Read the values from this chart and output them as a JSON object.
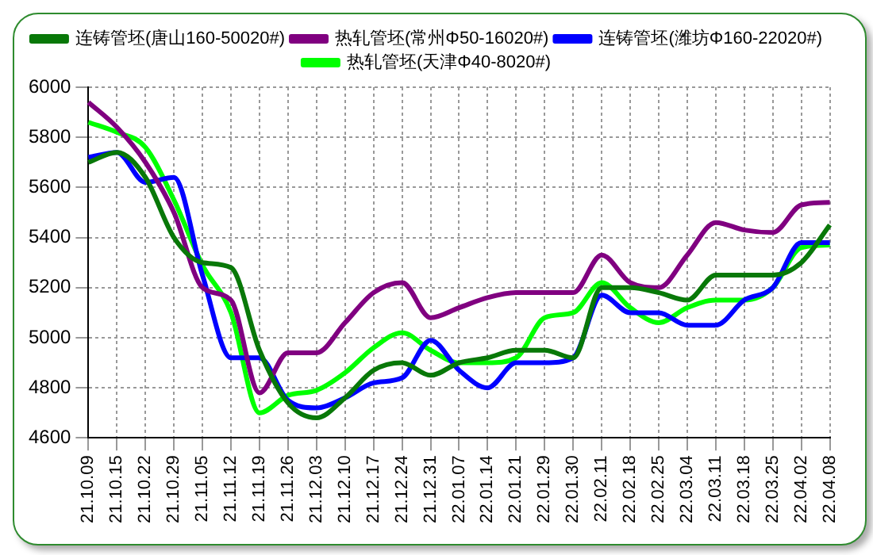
{
  "chart_data": {
    "type": "line",
    "categories": [
      "21.10.09",
      "21.10.15",
      "21.10.22",
      "21.10.29",
      "21.11.05",
      "21.11.12",
      "21.11.19",
      "21.11.26",
      "21.12.03",
      "21.12.10",
      "21.12.17",
      "21.12.24",
      "21.12.31",
      "22.01.07",
      "22.01.14",
      "22.01.21",
      "22.01.29",
      "22.01.30",
      "22.02.11",
      "22.02.18",
      "22.02.25",
      "22.03.04",
      "22.03.11",
      "22.03.18",
      "22.03.25",
      "22.04.02",
      "22.04.08"
    ],
    "series": [
      {
        "name": "连铸管坯(唐山160-50020#)",
        "color": "#087808",
        "values": [
          5700,
          5740,
          5640,
          5400,
          5300,
          5280,
          4950,
          4740,
          4680,
          4760,
          4870,
          4900,
          4850,
          4900,
          4920,
          4950,
          4950,
          4920,
          5200,
          5200,
          5180,
          5150,
          5250,
          5250,
          5250,
          5300,
          5450
        ]
      },
      {
        "name": "热轧管坯(常州Φ50-16020#)",
        "color": "#800080",
        "values": [
          5940,
          5840,
          5700,
          5500,
          5200,
          5150,
          4780,
          4940,
          4940,
          5060,
          5180,
          5220,
          5080,
          5120,
          5160,
          5180,
          5180,
          5180,
          5330,
          5220,
          5200,
          5330,
          5460,
          5430,
          5420,
          5530,
          5540
        ]
      },
      {
        "name": "连铸管坯(潍坊Φ160-22020#)",
        "color": "#0000ff",
        "values": [
          5720,
          5740,
          5620,
          5640,
          5250,
          4920,
          4920,
          4750,
          4720,
          4760,
          4820,
          4840,
          4990,
          4870,
          4800,
          4900,
          4900,
          4920,
          5170,
          5100,
          5100,
          5050,
          5050,
          5150,
          5200,
          5380,
          5380
        ]
      },
      {
        "name": "热轧管坯(天津Φ40-8020#)",
        "color": "#00ff00",
        "values": [
          5860,
          5820,
          5760,
          5550,
          5290,
          5100,
          4700,
          4770,
          4790,
          4860,
          4960,
          5020,
          4950,
          4900,
          4900,
          4920,
          5080,
          5100,
          5220,
          5120,
          5060,
          5120,
          5150,
          5150,
          5200,
          5360,
          5370
        ]
      }
    ],
    "ylim": [
      4600,
      6000
    ],
    "yticks": [
      4600,
      4800,
      5000,
      5200,
      5400,
      5600,
      5800,
      6000
    ],
    "grid": true,
    "legend": "top",
    "marker": "none",
    "line_style": "solid"
  }
}
